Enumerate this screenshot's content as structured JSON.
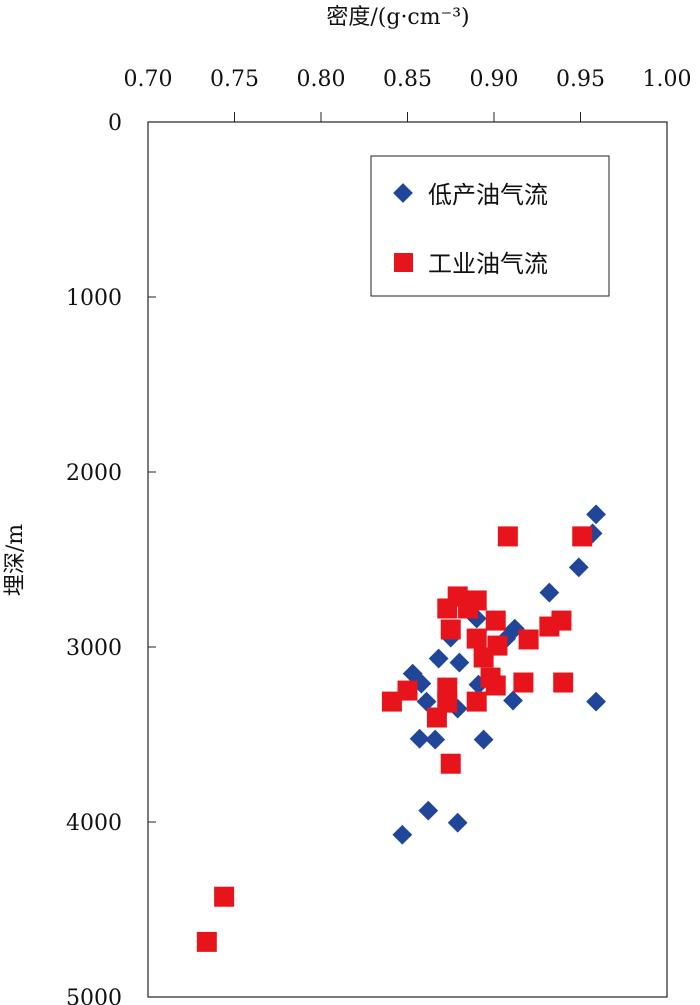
{
  "chart_data": {
    "type": "scatter",
    "title": "",
    "xlabel": "密度/(g·cm⁻³)",
    "ylabel": "埋深/m",
    "xlim": [
      0.7,
      1.0
    ],
    "ylim": [
      0,
      5000
    ],
    "y_inverted": true,
    "x_axis_position": "top",
    "xticks": [
      "0.70",
      "0.75",
      "0.80",
      "0.85",
      "0.90",
      "0.95",
      "1.00"
    ],
    "yticks": [
      "0",
      "1000",
      "2000",
      "3000",
      "4000",
      "5000"
    ],
    "grid": false,
    "legend_position": "top-right",
    "series": [
      {
        "name": "低产油气流",
        "marker": "diamond",
        "color": "#1f4699",
        "points": [
          [
            0.959,
            2242
          ],
          [
            0.957,
            2351
          ],
          [
            0.949,
            2545
          ],
          [
            0.932,
            2689
          ],
          [
            0.912,
            2895
          ],
          [
            0.907,
            2952
          ],
          [
            0.959,
            3312
          ],
          [
            0.911,
            3306
          ],
          [
            0.868,
            3066
          ],
          [
            0.88,
            3089
          ],
          [
            0.853,
            3152
          ],
          [
            0.858,
            3209
          ],
          [
            0.861,
            3312
          ],
          [
            0.879,
            3352
          ],
          [
            0.891,
            3215
          ],
          [
            0.857,
            3524
          ],
          [
            0.866,
            3529
          ],
          [
            0.894,
            3529
          ],
          [
            0.862,
            3935
          ],
          [
            0.879,
            4004
          ],
          [
            0.847,
            4073
          ],
          [
            0.875,
            2946
          ],
          [
            0.89,
            2837
          ]
        ]
      },
      {
        "name": "工业油气流",
        "marker": "square",
        "color": "#e8141b",
        "points": [
          [
            0.908,
            2368
          ],
          [
            0.951,
            2368
          ],
          [
            0.879,
            2711
          ],
          [
            0.89,
            2734
          ],
          [
            0.873,
            2780
          ],
          [
            0.885,
            2780
          ],
          [
            0.901,
            2849
          ],
          [
            0.875,
            2900
          ],
          [
            0.932,
            2883
          ],
          [
            0.939,
            2849
          ],
          [
            0.92,
            2957
          ],
          [
            0.89,
            2952
          ],
          [
            0.902,
            2992
          ],
          [
            0.894,
            3060
          ],
          [
            0.898,
            3175
          ],
          [
            0.901,
            3220
          ],
          [
            0.917,
            3203
          ],
          [
            0.94,
            3203
          ],
          [
            0.85,
            3249
          ],
          [
            0.841,
            3312
          ],
          [
            0.873,
            3232
          ],
          [
            0.873,
            3318
          ],
          [
            0.89,
            3312
          ],
          [
            0.867,
            3403
          ],
          [
            0.875,
            3667
          ],
          [
            0.744,
            4427
          ],
          [
            0.734,
            4685
          ]
        ]
      }
    ]
  }
}
